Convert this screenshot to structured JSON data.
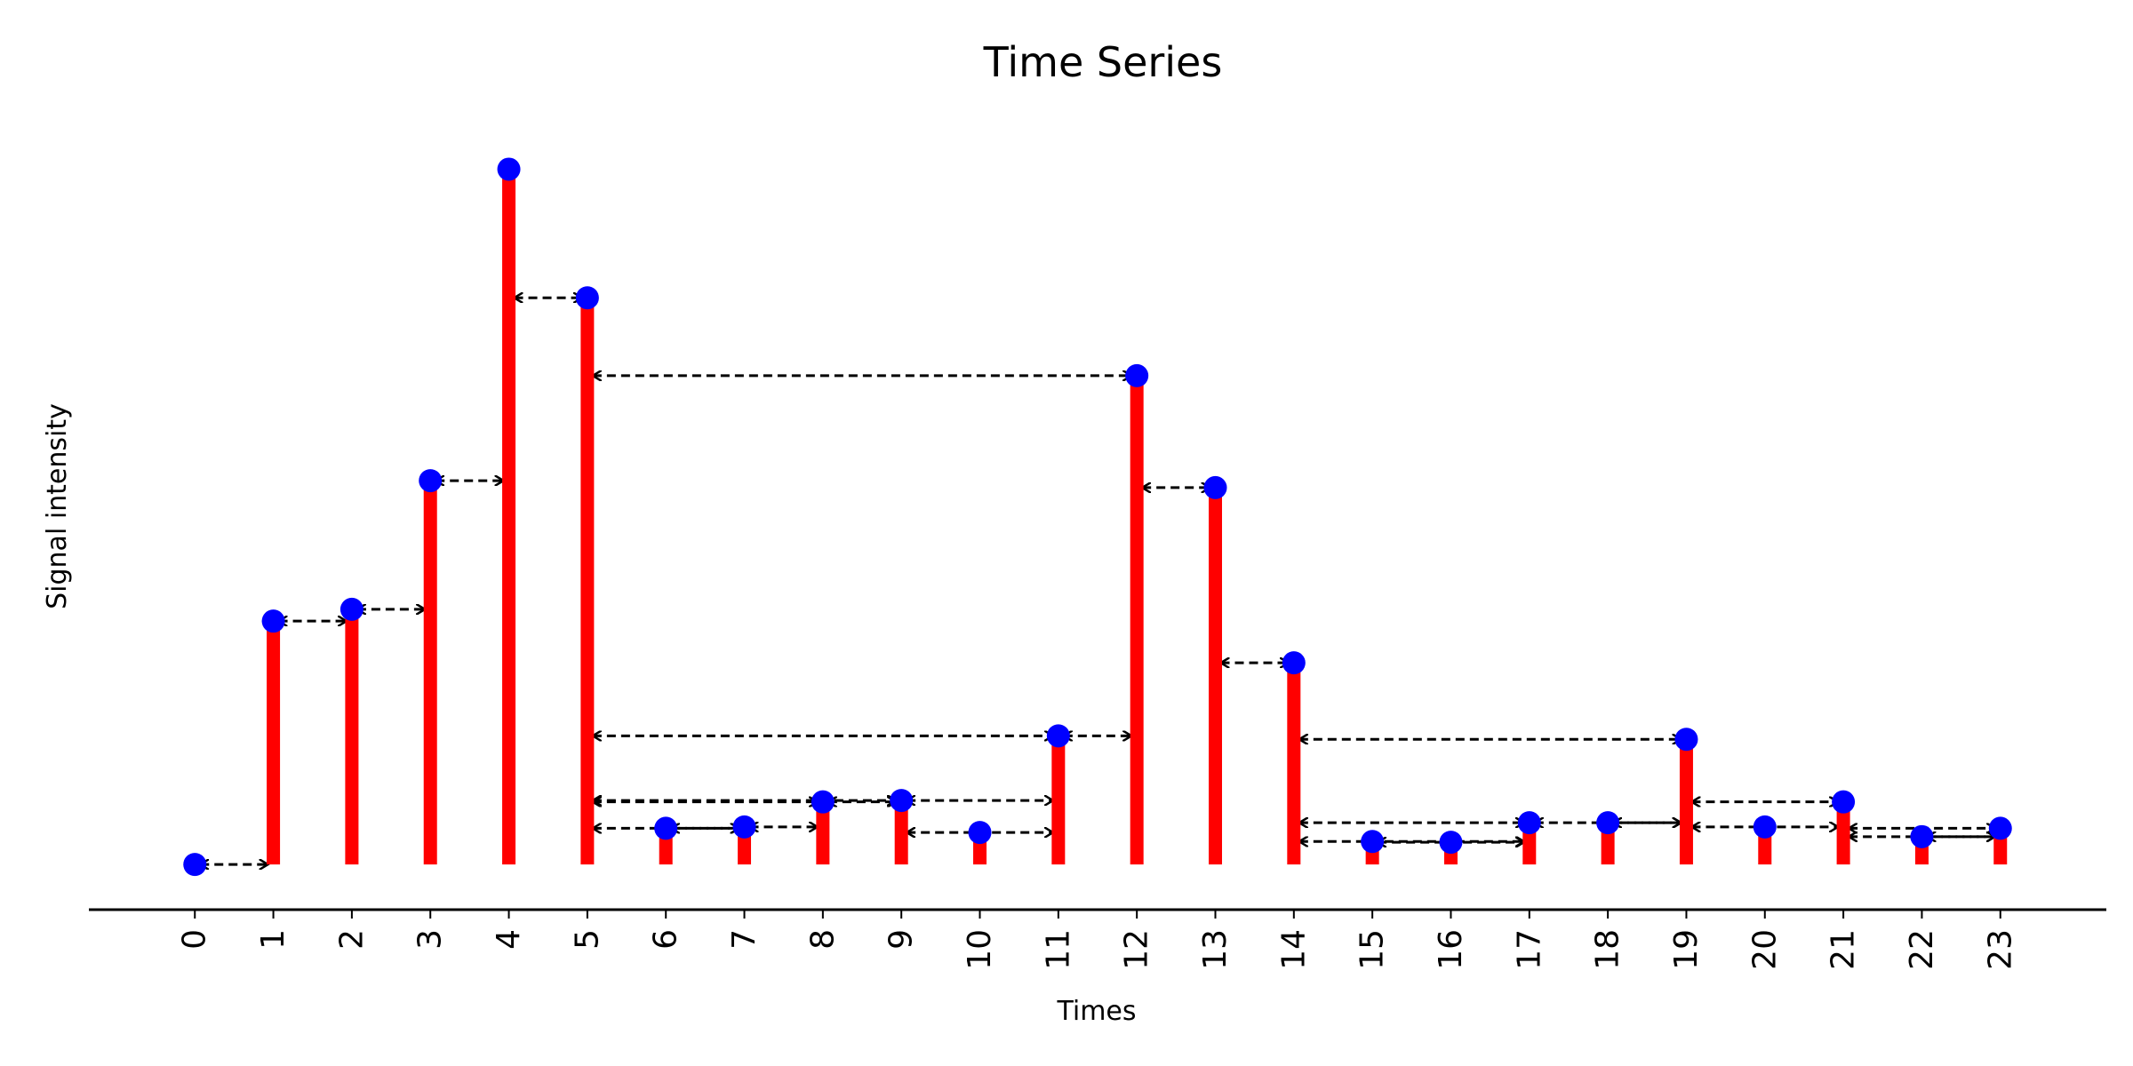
{
  "chart_data": {
    "type": "bar",
    "title": "Time Series",
    "xlabel": "Times",
    "ylabel": "Signal intensity",
    "x": [
      0,
      1,
      2,
      3,
      4,
      5,
      6,
      7,
      8,
      9,
      10,
      11,
      12,
      13,
      14,
      15,
      16,
      17,
      18,
      19,
      20,
      21,
      22,
      23
    ],
    "x_tick_labels": [
      "0",
      "1",
      "2",
      "3",
      "4",
      "5",
      "6",
      "7",
      "8",
      "9",
      "10",
      "11",
      "12",
      "13",
      "14",
      "15",
      "16",
      "17",
      "18",
      "19",
      "20",
      "21",
      "22",
      "23"
    ],
    "values": [
      0.0,
      0.35,
      0.367,
      0.552,
      1.0,
      0.815,
      0.052,
      0.054,
      0.09,
      0.092,
      0.046,
      0.185,
      0.703,
      0.542,
      0.29,
      0.033,
      0.032,
      0.06,
      0.06,
      0.18,
      0.054,
      0.09,
      0.04,
      0.052
    ],
    "ylim": [
      -0.065,
      1.09
    ],
    "xlim": [
      -1.35,
      24.35
    ],
    "y_axis_visible": false,
    "grid": false,
    "colors": {
      "stem": "#ff0000",
      "marker": "#0000ff",
      "arrow": "#000000"
    },
    "arrows": [
      [
        0,
        1,
        0.0
      ],
      [
        1,
        2,
        0.35
      ],
      [
        2,
        3,
        0.367
      ],
      [
        3,
        4,
        0.552
      ],
      [
        4,
        5,
        0.815
      ],
      [
        5,
        12,
        0.703
      ],
      [
        5,
        11,
        0.185
      ],
      [
        5,
        9,
        0.092
      ],
      [
        5,
        8,
        0.09
      ],
      [
        5,
        7,
        0.052
      ],
      [
        6,
        7,
        0.052
      ],
      [
        7,
        8,
        0.054
      ],
      [
        8,
        9,
        0.09
      ],
      [
        9,
        11,
        0.092
      ],
      [
        9,
        11,
        0.046
      ],
      [
        11,
        12,
        0.185
      ],
      [
        12,
        13,
        0.542
      ],
      [
        13,
        14,
        0.29
      ],
      [
        14,
        19,
        0.18
      ],
      [
        14,
        17,
        0.06
      ],
      [
        14,
        17,
        0.033
      ],
      [
        15,
        17,
        0.032
      ],
      [
        17,
        19,
        0.06
      ],
      [
        18,
        19,
        0.06
      ],
      [
        19,
        21,
        0.09
      ],
      [
        19,
        21,
        0.054
      ],
      [
        21,
        23,
        0.052
      ],
      [
        21,
        23,
        0.04
      ],
      [
        22,
        23,
        0.04
      ]
    ]
  }
}
